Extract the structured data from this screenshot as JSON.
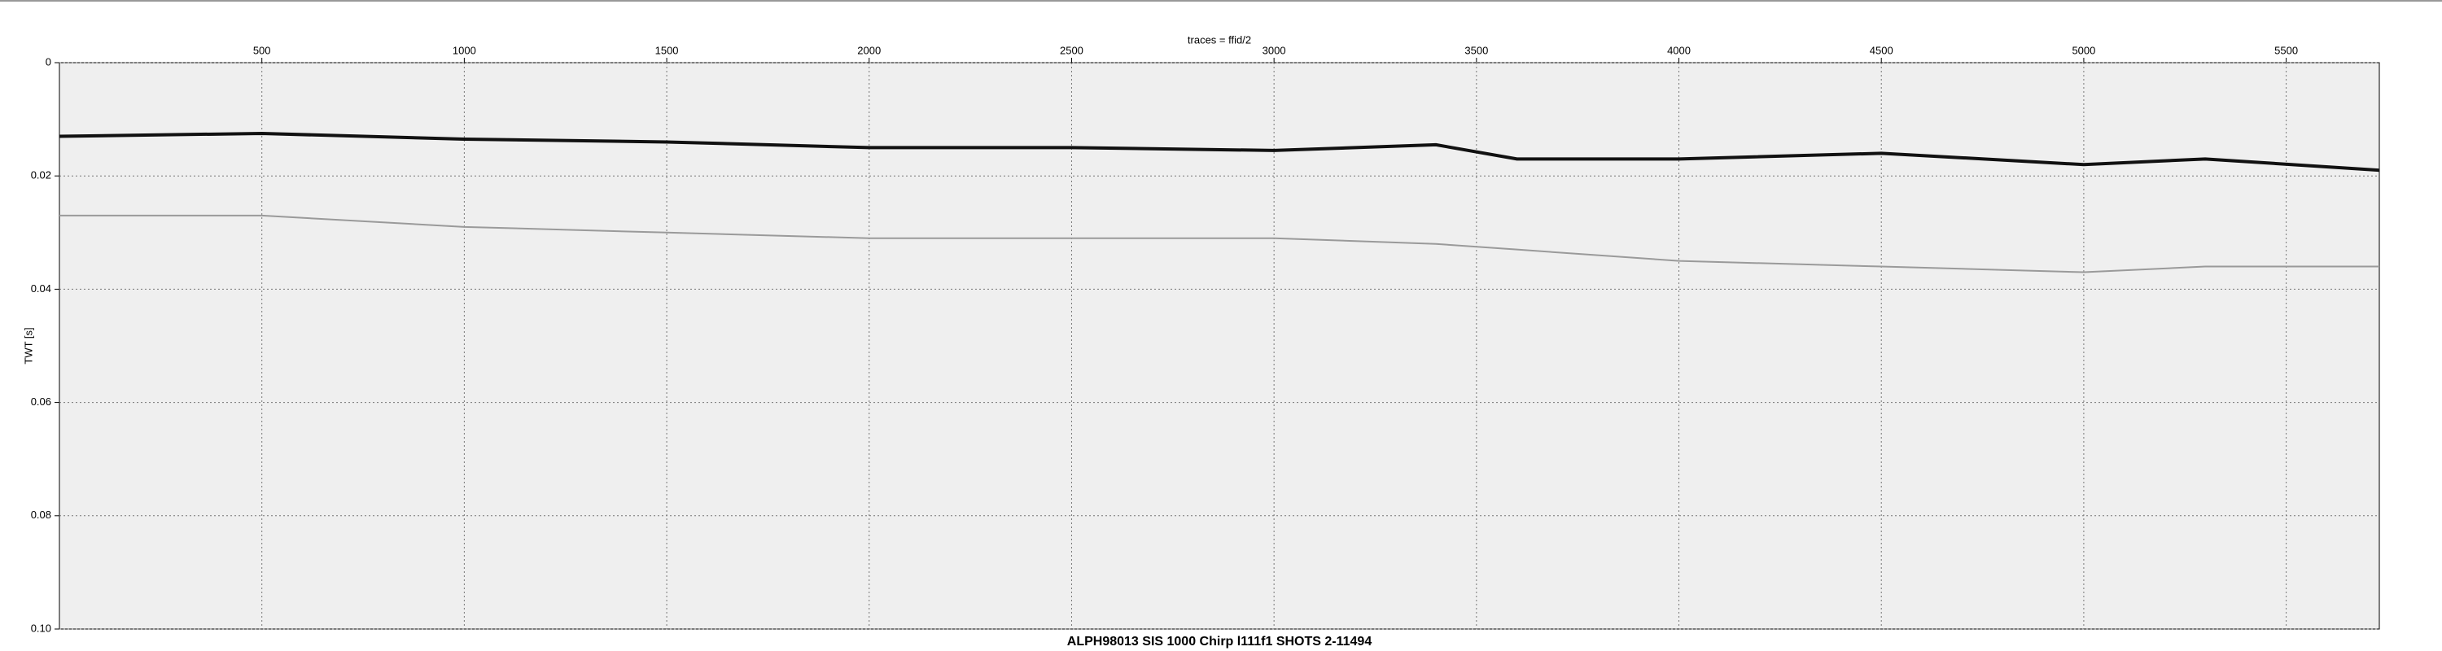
{
  "chart_data": {
    "type": "line",
    "title": "ALPH98013 SIS 1000 Chirp l111f1 SHOTS 2-11494",
    "x_label": "traces = ffid/2",
    "y_label": "TWT [s]",
    "x": [
      0,
      500,
      1000,
      1500,
      2000,
      2500,
      3000,
      3400,
      3600,
      4000,
      4500,
      5000,
      5300,
      5730
    ],
    "series": [
      {
        "color": "#111111",
        "values": [
          0.013,
          0.0125,
          0.0135,
          0.014,
          0.015,
          0.015,
          0.0155,
          0.0145,
          0.017,
          0.017,
          0.016,
          0.018,
          0.017,
          0.019
        ]
      },
      {
        "color": "#9a9a9a",
        "values": [
          0.027,
          0.027,
          0.029,
          0.03,
          0.031,
          0.031,
          0.031,
          0.032,
          0.033,
          0.035,
          0.036,
          0.037,
          0.036,
          0.036
        ]
      }
    ],
    "xlim": [
      0,
      5730
    ],
    "xticks": [
      500,
      1000,
      1500,
      2000,
      2500,
      3000,
      3500,
      4000,
      4500,
      5000,
      5500
    ],
    "ylim": [
      0,
      0.1
    ],
    "yticks": [
      0,
      0.02,
      0.04,
      0.06,
      0.08,
      {
        "value": 0.1,
        "label": "0.10"
      }
    ],
    "y_inverted": true,
    "grid": true
  }
}
